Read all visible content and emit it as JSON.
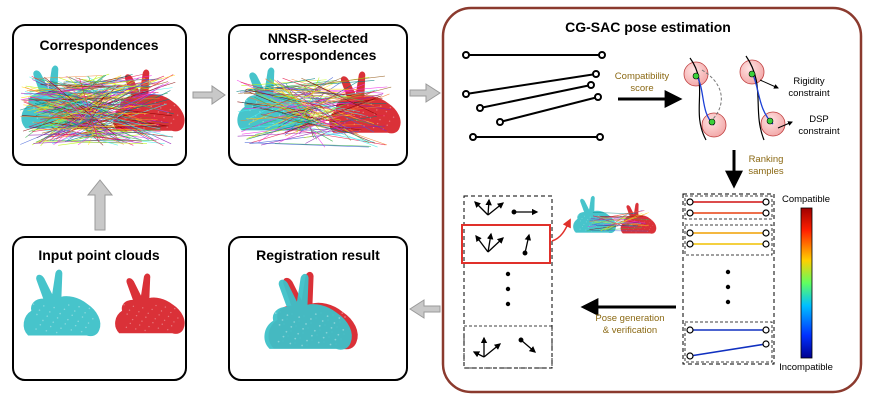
{
  "panels": {
    "correspondences": {
      "title": "Correspondences"
    },
    "nnsr": {
      "title_line1": "NNSR-selected",
      "title_line2": "correspondences"
    },
    "input": {
      "title": "Input point clouds"
    },
    "registration": {
      "title": "Registration result"
    },
    "cgsac": {
      "title": "CG-SAC pose estimation"
    }
  },
  "labels": {
    "compat_score_1": "Compatibility",
    "compat_score_2": "score",
    "rigidity_1": "Rigidity",
    "rigidity_2": "constraint",
    "dsp_1": "DSP",
    "dsp_2": "constraint",
    "ranking_1": "Ranking",
    "ranking_2": "samples",
    "pose_gen_1": "Pose generation",
    "pose_gen_2": "& verification",
    "colorbar_top": "Compatible",
    "colorbar_bottom": "Incompatible"
  },
  "colors": {
    "cgsac_border": "#8B3A2E",
    "accent_text": "#8B6914",
    "cyan": "#3EC1C9",
    "red": "#D9262E",
    "highlight": "#E0302A"
  }
}
